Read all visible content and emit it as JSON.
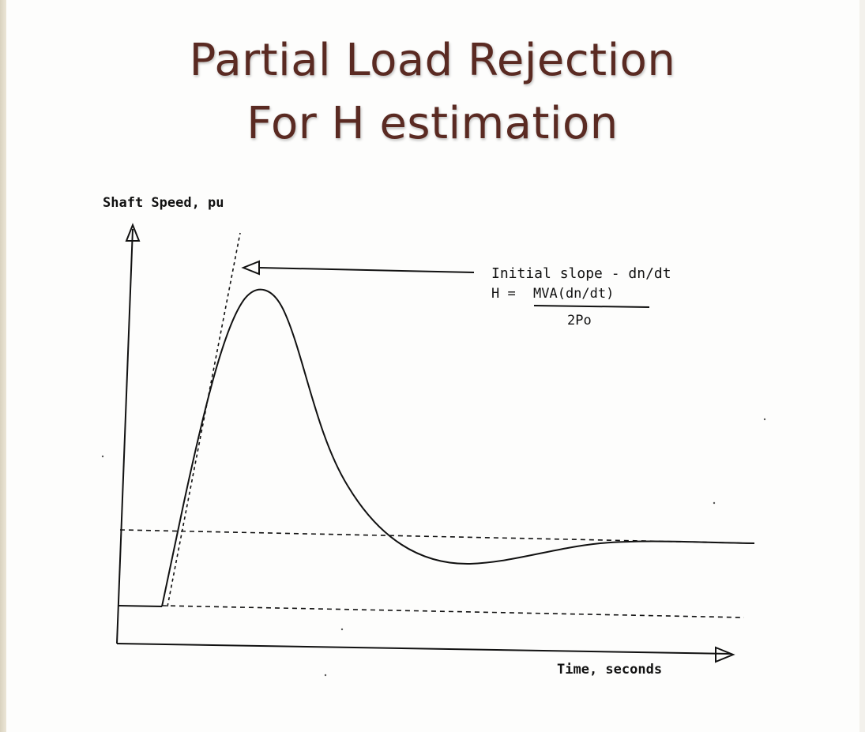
{
  "title": {
    "line1": "Partial Load Rejection",
    "line2": "For H estimation"
  },
  "diagram": {
    "y_axis_label": "Shaft Speed, pu",
    "x_axis_label": "Time, seconds",
    "annotation": {
      "slope_label": "Initial slope - dn/dt",
      "formula_lhs": "H =",
      "formula_numerator": "MVA(dn/dt)",
      "formula_denominator": "2Po"
    }
  },
  "colors": {
    "title": "#5a2a22",
    "ink": "#111111",
    "background": "#fdfdfc"
  }
}
